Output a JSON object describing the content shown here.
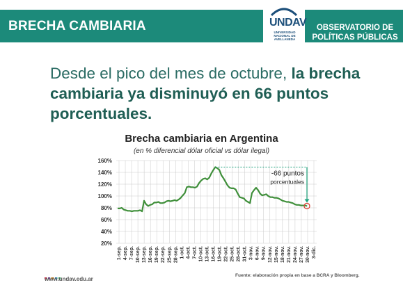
{
  "header": {
    "title": "BRECHA CAMBIARIA",
    "logo_text": "UNDAV",
    "logo_sub": "UNIVERSIDAD NACIONAL DE AVELLANEDA",
    "observatory_line1": "OBSERVATORIO DE",
    "observatory_line2": "POLÍTICAS PÚBLICAS"
  },
  "headline": {
    "normal": "Desde el pico del mes de octubre, ",
    "bold": "la brecha cambiaria ya disminuyó en 66 puntos porcentuales."
  },
  "chart_data": {
    "type": "line",
    "title": "Brecha cambiaria en Argentina",
    "subtitle": "(en % diferencial dólar oficial vs dólar ilegal)",
    "y_ticks": [
      "160%",
      "140%",
      "120%",
      "100%",
      "80%",
      "60%",
      "40%",
      "20%"
    ],
    "ylim": [
      20,
      160
    ],
    "x_tick_labels": [
      "1-sep.",
      "4-sep.",
      "7-sep.",
      "10-sep.",
      "13-sep.",
      "16-sep.",
      "19-sep.",
      "22-sep.",
      "25-sep.",
      "28-sep.",
      "1-oct.",
      "4-oct.",
      "7-oct.",
      "10-oct.",
      "13-oct.",
      "16-oct.",
      "19-oct.",
      "22-oct.",
      "25-oct.",
      "28-oct.",
      "31-oct.",
      "3-nov.",
      "6-nov.",
      "9-nov.",
      "12-nov.",
      "15-nov.",
      "18-nov.",
      "21-nov.",
      "24-nov.",
      "27-nov.",
      "30-nov.",
      "3-dic."
    ],
    "series": [
      {
        "x_index": [
          0,
          1,
          2,
          3,
          4,
          5,
          6,
          7,
          8,
          9,
          10,
          11,
          12,
          13,
          14,
          15,
          16,
          17,
          18,
          19,
          20,
          21,
          22,
          23,
          24,
          25,
          26,
          27,
          28,
          29,
          30,
          31,
          32,
          33,
          34,
          35,
          36,
          37,
          38,
          39,
          40,
          41,
          42,
          43,
          44,
          45,
          46,
          47,
          48,
          49,
          50,
          51,
          52,
          53,
          54,
          55,
          56,
          57,
          58,
          59,
          60,
          61,
          62,
          63,
          64,
          65,
          66,
          67,
          68,
          69,
          70,
          71,
          72,
          73,
          74,
          75,
          76,
          77,
          78,
          79,
          80,
          81,
          82,
          83,
          84,
          85,
          86,
          87,
          88,
          89,
          90,
          91,
          92,
          93
        ],
        "values": [
          79,
          79,
          80,
          77,
          76,
          75,
          75,
          74,
          75,
          75,
          75,
          76,
          74,
          92,
          86,
          83,
          85,
          86,
          89,
          89,
          90,
          88,
          88,
          89,
          91,
          92,
          91,
          92,
          93,
          92,
          94,
          97,
          101,
          105,
          115,
          116,
          115,
          115,
          114,
          116,
          122,
          126,
          129,
          130,
          128,
          131,
          138,
          144,
          149,
          147,
          144,
          135,
          130,
          124,
          118,
          114,
          113,
          113,
          111,
          104,
          98,
          97,
          96,
          92,
          90,
          88,
          105,
          110,
          114,
          110,
          104,
          101,
          102,
          103,
          100,
          98,
          98,
          97,
          97,
          96,
          94,
          92,
          91,
          90,
          90,
          89,
          88,
          86,
          85,
          85,
          84,
          84,
          84,
          83
        ]
      }
    ],
    "annotation": {
      "line1": "-66 puntos",
      "line2": "porcentuales"
    },
    "colors": {
      "line": "#3f8f3a",
      "grid": "#c9c9c9",
      "annotation": "#1fa37d",
      "marker": "#d9443a"
    }
  },
  "footer": {
    "url": "www.undav.edu.ar",
    "source": "Fuente: elaboración propia en base a BCRA y Bloomberg.",
    "dot_colors": [
      "#e0425a",
      "#8a4fb5",
      "#f0a030",
      "#3aa0d8",
      "#3fb56a"
    ]
  }
}
